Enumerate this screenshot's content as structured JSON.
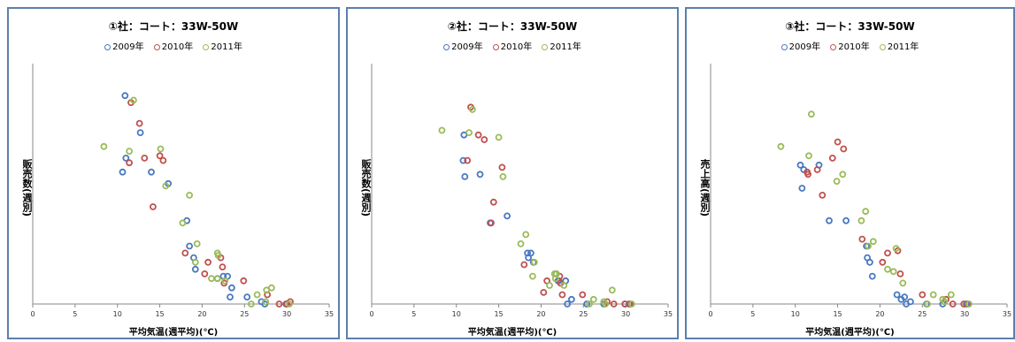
{
  "chart_data": [
    {
      "type": "scatter",
      "title": "①社：コート：33W-50W",
      "xlabel": "平均気温(週平均)(℃)",
      "ylabel": "販売数(週別)",
      "xlim": [
        0,
        35
      ],
      "ylim": [
        0,
        100
      ],
      "xticks": [
        "0",
        "5",
        "10",
        "15",
        "20",
        "25",
        "30",
        "35"
      ],
      "legend_position": "top-center",
      "series": [
        {
          "name": "2009年",
          "color": "#4a78c0",
          "points": [
            [
              10.9,
              90
            ],
            [
              12.7,
              74
            ],
            [
              11.0,
              63
            ],
            [
              10.6,
              57
            ],
            [
              14.0,
              57
            ],
            [
              16.0,
              52
            ],
            [
              18.2,
              36
            ],
            [
              18.5,
              25
            ],
            [
              19.0,
              20
            ],
            [
              19.2,
              15
            ],
            [
              21.8,
              11
            ],
            [
              22.5,
              12
            ],
            [
              23.0,
              12
            ],
            [
              23.5,
              7
            ],
            [
              23.3,
              3
            ],
            [
              25.3,
              3
            ],
            [
              27.0,
              1
            ],
            [
              27.4,
              0
            ],
            [
              29.9,
              0
            ]
          ]
        },
        {
          "name": "2010年",
          "color": "#c0504d",
          "points": [
            [
              11.6,
              87
            ],
            [
              12.6,
              78
            ],
            [
              13.2,
              63
            ],
            [
              11.4,
              61
            ],
            [
              15.0,
              64
            ],
            [
              15.4,
              62
            ],
            [
              14.2,
              42
            ],
            [
              18.0,
              22
            ],
            [
              20.7,
              18
            ],
            [
              22.2,
              20
            ],
            [
              22.4,
              16
            ],
            [
              20.3,
              13
            ],
            [
              22.6,
              9
            ],
            [
              24.9,
              10
            ],
            [
              27.7,
              4
            ],
            [
              29.1,
              0
            ],
            [
              30.4,
              1
            ],
            [
              30.0,
              0
            ]
          ]
        },
        {
          "name": "2011年",
          "color": "#9bbb59",
          "points": [
            [
              8.4,
              68
            ],
            [
              11.9,
              88
            ],
            [
              11.4,
              66
            ],
            [
              15.1,
              67
            ],
            [
              15.7,
              51
            ],
            [
              18.5,
              47
            ],
            [
              17.7,
              35
            ],
            [
              19.4,
              26
            ],
            [
              19.2,
              18
            ],
            [
              21.8,
              22
            ],
            [
              21.9,
              21
            ],
            [
              21.1,
              11
            ],
            [
              21.8,
              11
            ],
            [
              22.7,
              10
            ],
            [
              26.5,
              4
            ],
            [
              27.6,
              6
            ],
            [
              28.2,
              7
            ],
            [
              27.5,
              1
            ],
            [
              30.3,
              0
            ],
            [
              25.8,
              0
            ]
          ]
        }
      ]
    },
    {
      "type": "scatter",
      "title": "②社：コート：33W-50W",
      "xlabel": "平均気温(週平均)(℃)",
      "ylabel": "販売数(週別)",
      "xlim": [
        0,
        35
      ],
      "ylim": [
        0,
        100
      ],
      "xticks": [
        "0",
        "5",
        "10",
        "15",
        "20",
        "25",
        "30",
        "35"
      ],
      "legend_position": "top-center",
      "series": [
        {
          "name": "2009年",
          "color": "#4a78c0",
          "points": [
            [
              10.9,
              73
            ],
            [
              10.8,
              62
            ],
            [
              11.0,
              55
            ],
            [
              12.8,
              56
            ],
            [
              16.0,
              38
            ],
            [
              14.0,
              35
            ],
            [
              18.4,
              22
            ],
            [
              18.5,
              20
            ],
            [
              18.8,
              22
            ],
            [
              19.1,
              18
            ],
            [
              21.8,
              13
            ],
            [
              22.0,
              10
            ],
            [
              22.9,
              10
            ],
            [
              22.1,
              10
            ],
            [
              23.1,
              0
            ],
            [
              23.6,
              2
            ],
            [
              25.4,
              0
            ],
            [
              27.4,
              0
            ],
            [
              29.9,
              0
            ],
            [
              30.4,
              0
            ]
          ]
        },
        {
          "name": "2010年",
          "color": "#c0504d",
          "points": [
            [
              11.7,
              85
            ],
            [
              12.6,
              73
            ],
            [
              13.3,
              71
            ],
            [
              11.3,
              62
            ],
            [
              15.4,
              59
            ],
            [
              14.4,
              44
            ],
            [
              14.1,
              35
            ],
            [
              18.0,
              17
            ],
            [
              20.7,
              10
            ],
            [
              22.2,
              12
            ],
            [
              22.3,
              9
            ],
            [
              20.3,
              5
            ],
            [
              22.5,
              4
            ],
            [
              24.9,
              4
            ],
            [
              27.8,
              1
            ],
            [
              28.6,
              0
            ],
            [
              30.5,
              0
            ],
            [
              29.9,
              0
            ]
          ]
        },
        {
          "name": "2011年",
          "color": "#9bbb59",
          "points": [
            [
              8.3,
              75
            ],
            [
              11.9,
              84
            ],
            [
              11.5,
              74
            ],
            [
              15.0,
              72
            ],
            [
              15.5,
              55
            ],
            [
              18.2,
              30
            ],
            [
              17.6,
              26
            ],
            [
              19.2,
              18
            ],
            [
              19.0,
              12
            ],
            [
              21.8,
              13
            ],
            [
              21.7,
              11
            ],
            [
              21.0,
              8
            ],
            [
              21.6,
              13
            ],
            [
              22.7,
              8
            ],
            [
              26.2,
              2
            ],
            [
              27.4,
              1
            ],
            [
              28.4,
              6
            ],
            [
              27.6,
              0
            ],
            [
              30.7,
              0
            ],
            [
              25.7,
              0
            ]
          ]
        }
      ]
    },
    {
      "type": "scatter",
      "title": "③社：コート：33W-50W",
      "xlabel": "平均気温(週平均)(℃)",
      "ylabel": "売上高(週別)",
      "xlim": [
        0,
        35
      ],
      "ylim": [
        0,
        100
      ],
      "xticks": [
        "0",
        "5",
        "10",
        "15",
        "20",
        "25",
        "30",
        "35"
      ],
      "legend_position": "top-center",
      "series": [
        {
          "name": "2009年",
          "color": "#4a78c0",
          "points": [
            [
              10.6,
              60
            ],
            [
              11.0,
              58
            ],
            [
              12.8,
              60
            ],
            [
              10.8,
              50
            ],
            [
              16.0,
              36
            ],
            [
              14.0,
              36
            ],
            [
              18.4,
              25
            ],
            [
              18.5,
              20
            ],
            [
              18.8,
              18
            ],
            [
              19.1,
              12
            ],
            [
              22.0,
              4
            ],
            [
              22.5,
              2
            ],
            [
              22.9,
              3
            ],
            [
              23.1,
              0
            ],
            [
              23.6,
              1
            ],
            [
              25.5,
              0
            ],
            [
              27.4,
              0
            ],
            [
              30.2,
              0
            ]
          ]
        },
        {
          "name": "2010年",
          "color": "#c0504d",
          "points": [
            [
              15.0,
              70
            ],
            [
              15.7,
              67
            ],
            [
              14.4,
              63
            ],
            [
              12.6,
              58
            ],
            [
              11.5,
              56
            ],
            [
              11.4,
              57
            ],
            [
              13.2,
              47
            ],
            [
              17.9,
              28
            ],
            [
              20.9,
              22
            ],
            [
              22.1,
              23
            ],
            [
              20.3,
              18
            ],
            [
              22.4,
              13
            ],
            [
              25.0,
              4
            ],
            [
              27.8,
              2
            ],
            [
              28.6,
              0
            ],
            [
              30.4,
              0
            ],
            [
              29.9,
              0
            ]
          ]
        },
        {
          "name": "2011年",
          "color": "#9bbb59",
          "points": [
            [
              11.9,
              82
            ],
            [
              8.3,
              68
            ],
            [
              11.6,
              64
            ],
            [
              15.6,
              56
            ],
            [
              14.9,
              53
            ],
            [
              17.8,
              36
            ],
            [
              18.3,
              40
            ],
            [
              19.2,
              27
            ],
            [
              18.6,
              25
            ],
            [
              21.9,
              24
            ],
            [
              21.6,
              14
            ],
            [
              20.9,
              15
            ],
            [
              22.7,
              9
            ],
            [
              26.3,
              4
            ],
            [
              27.4,
              2
            ],
            [
              28.4,
              4
            ],
            [
              27.6,
              1
            ],
            [
              30.5,
              0
            ],
            [
              25.6,
              0
            ]
          ]
        }
      ]
    }
  ]
}
